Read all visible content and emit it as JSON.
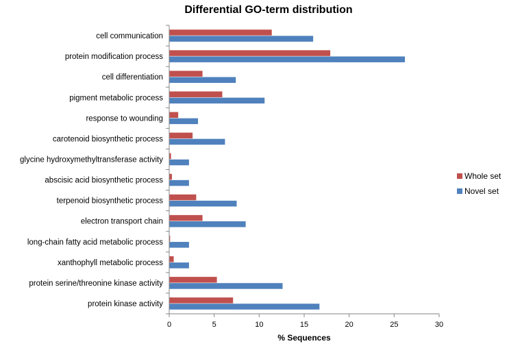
{
  "chart_data": {
    "type": "bar",
    "orientation": "horizontal",
    "title": "Differential GO-term distribution",
    "xlabel": "% Sequences",
    "ylabel": "",
    "xlim": [
      0,
      30
    ],
    "xticks": [
      0,
      5,
      10,
      15,
      20,
      25,
      30
    ],
    "categories": [
      "cell communication",
      "protein modification process",
      "cell differentiation",
      "pigment metabolic process",
      "response to wounding",
      "carotenoid biosynthetic process",
      "glycine hydroxymethyltransferase activity",
      "abscisic acid biosynthetic process",
      "terpenoid biosynthetic process",
      "electron transport chain",
      "long-chain fatty acid metabolic process",
      "xanthophyll metabolic process",
      "protein serine/threonine kinase activity",
      "protein kinase activity"
    ],
    "series": [
      {
        "name": "Whole set",
        "color": "#C0504D",
        "values": [
          11.4,
          17.9,
          3.7,
          5.9,
          1.0,
          2.6,
          0.2,
          0.3,
          3.0,
          3.7,
          0.1,
          0.5,
          5.3,
          7.1
        ]
      },
      {
        "name": "Novel set",
        "color": "#4F81BD",
        "values": [
          16.0,
          26.2,
          7.4,
          10.6,
          3.2,
          6.2,
          2.2,
          2.2,
          7.5,
          8.5,
          2.2,
          2.2,
          12.6,
          16.7
        ]
      }
    ],
    "legend_position": "right",
    "grid": false
  }
}
